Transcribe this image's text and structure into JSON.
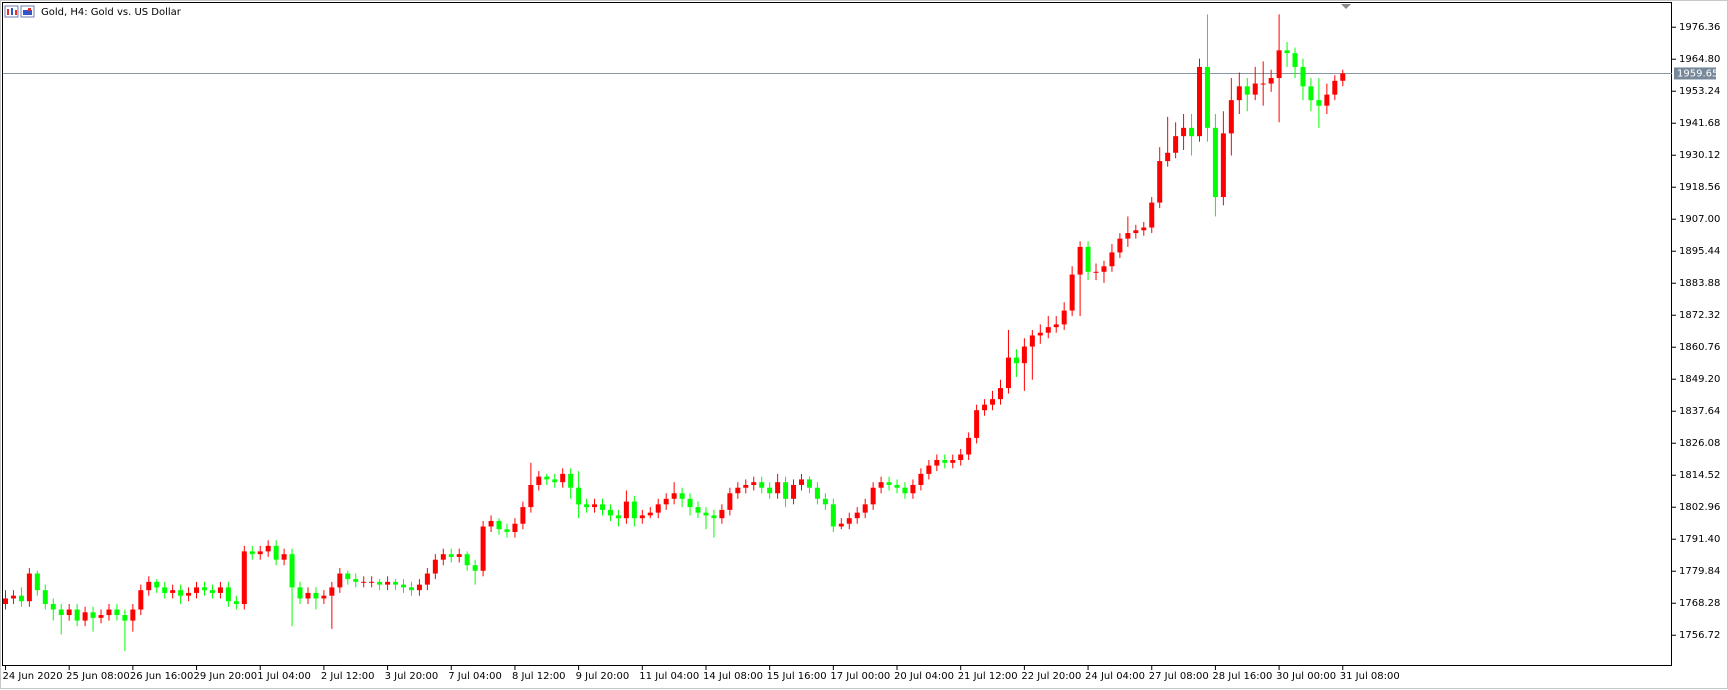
{
  "chart_data": {
    "type": "candlestick",
    "title": "Gold, H4:  Gold vs. US Dollar",
    "up_color": "#ff0000",
    "down_color": "#00ff00",
    "categories": [
      "24 Jun 2020",
      null,
      null,
      null,
      null,
      null,
      null,
      null,
      "25 Jun 08:00",
      null,
      null,
      null,
      null,
      null,
      null,
      null,
      "26 Jun 16:00",
      null,
      null,
      null,
      null,
      null,
      null,
      null,
      "29 Jun 20:00",
      null,
      null,
      null,
      null,
      null,
      null,
      null,
      "1 Jul 04:00",
      null,
      null,
      null,
      null,
      null,
      null,
      null,
      "2 Jul 12:00",
      null,
      null,
      null,
      null,
      null,
      null,
      null,
      "3 Jul 20:00",
      null,
      null,
      null,
      null,
      null,
      null,
      null,
      "7 Jul 04:00",
      null,
      null,
      null,
      null,
      null,
      null,
      null,
      "8 Jul 12:00",
      null,
      null,
      null,
      null,
      null,
      null,
      null,
      "9 Jul 20:00",
      null,
      null,
      null,
      null,
      null,
      null,
      null,
      "11 Jul 04:00",
      null,
      null,
      null,
      null,
      null,
      null,
      null,
      "14 Jul 08:00",
      null,
      null,
      null,
      null,
      null,
      null,
      null,
      "15 Jul 16:00",
      null,
      null,
      null,
      null,
      null,
      null,
      null,
      "17 Jul 00:00",
      null,
      null,
      null,
      null,
      null,
      null,
      null,
      "20 Jul 04:00",
      null,
      null,
      null,
      null,
      null,
      null,
      null,
      "21 Jul 12:00",
      null,
      null,
      null,
      null,
      null,
      null,
      null,
      "22 Jul 20:00",
      null,
      null,
      null,
      null,
      null,
      null,
      null,
      "24 Jul 04:00",
      null,
      null,
      null,
      null,
      null,
      null,
      null,
      "27 Jul 08:00",
      null,
      null,
      null,
      null,
      null,
      null,
      null,
      "28 Jul 16:00",
      null,
      null,
      null,
      null,
      null,
      null,
      null,
      "30 Jul 00:00",
      null,
      null,
      null,
      null,
      null,
      null,
      null,
      "31 Jul 08:00"
    ],
    "open": [
      1768,
      1770,
      1771,
      1769,
      1779,
      1773,
      1768,
      1766,
      1764,
      1766,
      1762,
      1765,
      1763,
      1764,
      1766,
      1764,
      1762,
      1766,
      1773,
      1776,
      1774,
      1772,
      1773,
      1771,
      1772,
      1774,
      1773,
      1772,
      1774,
      1769,
      1768,
      1787,
      1786,
      1787,
      1789,
      1784,
      1786,
      1774,
      1770,
      1772,
      1770,
      1771,
      1774,
      1779,
      1777,
      1776,
      1776,
      1776,
      1775,
      1776,
      1775,
      1774,
      1773,
      1775,
      1779,
      1784,
      1786,
      1785,
      1786,
      1782,
      1780,
      1796,
      1798,
      1795,
      1794,
      1797,
      1803,
      1811,
      1814,
      1813,
      1812,
      1815,
      1810,
      1804,
      1803,
      1804,
      1802,
      1800,
      1799,
      1805,
      1799,
      1800,
      1801,
      1804,
      1806,
      1808,
      1806,
      1803,
      1801,
      1800,
      1799,
      1802,
      1808,
      1810,
      1811,
      1812,
      1810,
      1808,
      1812,
      1806,
      1811,
      1813,
      1810,
      1806,
      1804,
      1796,
      1797,
      1799,
      1801,
      1804,
      1810,
      1812,
      1811,
      1810,
      1808,
      1811,
      1815,
      1818,
      1820,
      1819,
      1820,
      1822,
      1828,
      1838,
      1840,
      1842,
      1846,
      1857,
      1855,
      1861,
      1865,
      1866,
      1868,
      1869,
      1874,
      1887,
      1897,
      1888,
      1888,
      1890,
      1895,
      1900,
      1902,
      1903,
      1904,
      1913,
      1928,
      1931,
      1937,
      1940,
      1937,
      1962,
      1940,
      1915,
      1938,
      1950,
      1955,
      1952,
      1956,
      1956,
      1958,
      1968,
      1967,
      1962,
      1955,
      1950,
      1948,
      1952,
      1957
    ],
    "high": [
      1773,
      1773,
      1774,
      1781,
      1780,
      1775,
      1770,
      1768,
      1768,
      1768,
      1767,
      1767,
      1766,
      1768,
      1768,
      1766,
      1768,
      1775,
      1778,
      1777,
      1776,
      1775,
      1775,
      1774,
      1776,
      1776,
      1775,
      1776,
      1776,
      1771,
      1789,
      1789,
      1789,
      1791,
      1791,
      1788,
      1788,
      1776,
      1774,
      1774,
      1773,
      1776,
      1781,
      1780,
      1779,
      1778,
      1778,
      1777,
      1778,
      1777,
      1777,
      1776,
      1777,
      1781,
      1786,
      1788,
      1788,
      1788,
      1787,
      1784,
      1798,
      1800,
      1799,
      1797,
      1799,
      1805,
      1819,
      1816,
      1815,
      1815,
      1817,
      1817,
      1816,
      1806,
      1806,
      1806,
      1804,
      1802,
      1809,
      1807,
      1802,
      1803,
      1806,
      1808,
      1812,
      1810,
      1808,
      1805,
      1803,
      1802,
      1804,
      1810,
      1812,
      1813,
      1814,
      1814,
      1812,
      1815,
      1814,
      1813,
      1815,
      1814,
      1812,
      1808,
      1806,
      1799,
      1801,
      1803,
      1806,
      1812,
      1814,
      1814,
      1813,
      1812,
      1813,
      1817,
      1820,
      1822,
      1822,
      1822,
      1824,
      1830,
      1840,
      1842,
      1845,
      1849,
      1867,
      1860,
      1864,
      1867,
      1869,
      1872,
      1872,
      1877,
      1890,
      1899,
      1899,
      1891,
      1892,
      1898,
      1902,
      1908,
      1905,
      1906,
      1915,
      1933,
      1944,
      1942,
      1945,
      1945,
      1965,
      1981,
      1945,
      1946,
      1958,
      1960,
      1958,
      1962,
      1964,
      1961,
      1981,
      1971,
      1969,
      1965,
      1958,
      1958,
      1956,
      1959,
      1961
    ],
    "low": [
      1766,
      1768,
      1767,
      1767,
      1771,
      1766,
      1762,
      1757,
      1762,
      1760,
      1760,
      1758,
      1761,
      1762,
      1762,
      1751,
      1758,
      1764,
      1771,
      1772,
      1770,
      1770,
      1768,
      1769,
      1770,
      1771,
      1770,
      1770,
      1767,
      1766,
      1766,
      1784,
      1784,
      1785,
      1782,
      1782,
      1760,
      1768,
      1768,
      1766,
      1768,
      1759,
      1772,
      1775,
      1774,
      1774,
      1774,
      1773,
      1773,
      1773,
      1772,
      1771,
      1771,
      1773,
      1777,
      1782,
      1783,
      1783,
      1780,
      1775,
      1778,
      1794,
      1793,
      1792,
      1792,
      1795,
      1801,
      1809,
      1811,
      1810,
      1810,
      1806,
      1799,
      1801,
      1801,
      1800,
      1798,
      1796,
      1797,
      1796,
      1797,
      1799,
      1799,
      1802,
      1804,
      1803,
      1800,
      1799,
      1795,
      1792,
      1797,
      1800,
      1806,
      1808,
      1809,
      1808,
      1806,
      1806,
      1803,
      1804,
      1809,
      1808,
      1804,
      1802,
      1794,
      1795,
      1795,
      1797,
      1799,
      1802,
      1808,
      1809,
      1808,
      1806,
      1806,
      1809,
      1813,
      1816,
      1817,
      1817,
      1818,
      1820,
      1826,
      1836,
      1838,
      1840,
      1844,
      1850,
      1845,
      1849,
      1862,
      1864,
      1866,
      1867,
      1872,
      1872,
      1885,
      1885,
      1884,
      1888,
      1893,
      1897,
      1900,
      1901,
      1902,
      1911,
      1926,
      1929,
      1932,
      1930,
      1935,
      1935,
      1908,
      1912,
      1930,
      1945,
      1946,
      1950,
      1948,
      1953,
      1942,
      1962,
      1958,
      1950,
      1946,
      1940,
      1945,
      1950,
      1955
    ],
    "close": [
      1770,
      1771,
      1769,
      1779,
      1773,
      1768,
      1766,
      1764,
      1766,
      1762,
      1765,
      1763,
      1764,
      1766,
      1764,
      1762,
      1766,
      1773,
      1776,
      1774,
      1772,
      1773,
      1771,
      1772,
      1774,
      1773,
      1772,
      1774,
      1769,
      1768,
      1787,
      1786,
      1787,
      1789,
      1784,
      1786,
      1774,
      1770,
      1772,
      1770,
      1771,
      1774,
      1779,
      1777,
      1776,
      1776,
      1776,
      1775,
      1776,
      1775,
      1774,
      1773,
      1775,
      1779,
      1784,
      1786,
      1785,
      1786,
      1782,
      1780,
      1796,
      1798,
      1795,
      1794,
      1797,
      1803,
      1811,
      1814,
      1813,
      1812,
      1815,
      1810,
      1804,
      1803,
      1804,
      1802,
      1800,
      1799,
      1805,
      1799,
      1800,
      1801,
      1804,
      1806,
      1808,
      1806,
      1803,
      1801,
      1800,
      1799,
      1802,
      1808,
      1810,
      1811,
      1812,
      1810,
      1808,
      1812,
      1806,
      1811,
      1813,
      1810,
      1806,
      1804,
      1796,
      1797,
      1799,
      1801,
      1804,
      1810,
      1812,
      1811,
      1810,
      1808,
      1811,
      1815,
      1818,
      1820,
      1819,
      1820,
      1822,
      1828,
      1838,
      1840,
      1842,
      1846,
      1857,
      1855,
      1861,
      1865,
      1866,
      1868,
      1869,
      1874,
      1887,
      1897,
      1888,
      1888,
      1890,
      1895,
      1900,
      1902,
      1903,
      1904,
      1913,
      1928,
      1931,
      1937,
      1940,
      1937,
      1962,
      1940,
      1915,
      1938,
      1950,
      1955,
      1952,
      1956,
      1956,
      1958,
      1968,
      1967,
      1962,
      1955,
      1950,
      1948,
      1952,
      1957,
      1959.65
    ],
    "ylim": [
      1745.6,
      1985.1
    ],
    "yticks": [
      1756.72,
      1768.28,
      1779.84,
      {
        "value": 1791.4,
        "label": "1791.40"
      },
      1802.96,
      1814.52,
      1826.08,
      1837.64,
      {
        "value": 1849.2,
        "label": "1849.20"
      },
      1860.76,
      1872.32,
      1883.88,
      1895.44,
      {
        "value": 1907,
        "label": "1907.00"
      },
      1918.56,
      1930.12,
      1941.68,
      1953.24,
      {
        "value": 1964.8,
        "label": "1964.80"
      },
      1976.36
    ]
  }
}
